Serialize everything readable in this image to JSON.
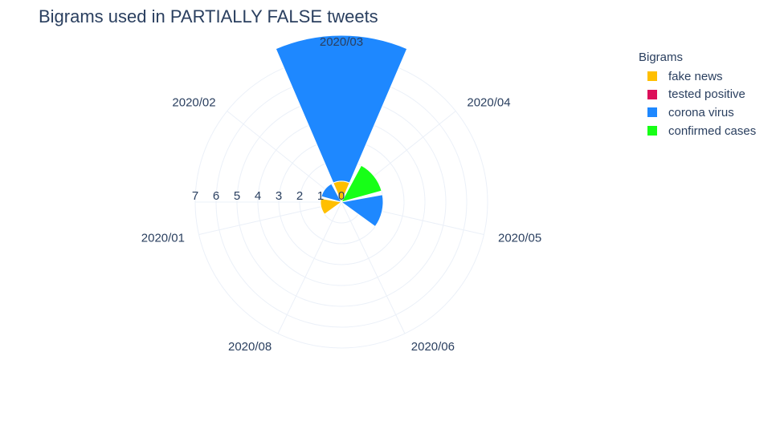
{
  "chart_data": {
    "type": "polar-bar",
    "title": "Bigrams used in PARTIALLY FALSE tweets",
    "angular_categories": [
      "2020/03",
      "2020/04",
      "2020/05",
      "2020/06",
      "2020/08",
      "2020/01",
      "2020/02"
    ],
    "radial_ticks": [
      "0",
      "1",
      "2",
      "3",
      "4",
      "5",
      "6",
      "7"
    ],
    "radial_range": [
      0,
      7
    ],
    "legend_title": "Bigrams",
    "legend_placement": "top-right",
    "grid": true,
    "series": [
      {
        "name": "fake news",
        "color": "#ffbf00",
        "values": {
          "2020/01": 1,
          "2020/03": 1
        }
      },
      {
        "name": "tested positive",
        "color": "#dc0f5a",
        "values": {}
      },
      {
        "name": "corona virus",
        "color": "#1e88ff",
        "values": {
          "2020/02": 1,
          "2020/03": 7,
          "2020/05": 2
        }
      },
      {
        "name": "confirmed cases",
        "color": "#17ff17",
        "values": {
          "2020/04": 2
        }
      }
    ]
  }
}
